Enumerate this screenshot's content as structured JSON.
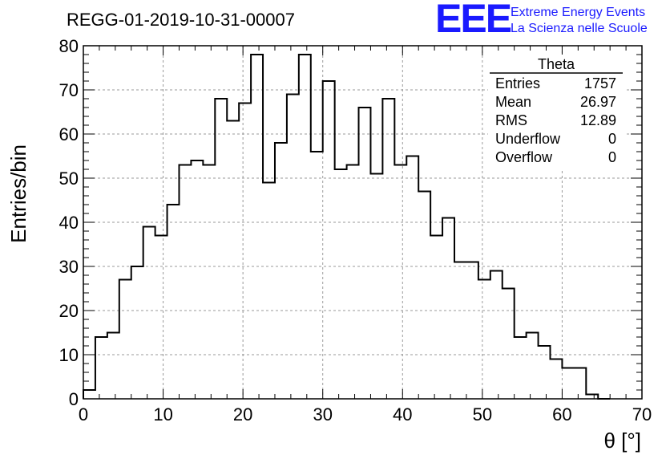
{
  "chart_data": {
    "type": "bar",
    "histogram": true,
    "title": "REGG-01-2019-10-31-00007",
    "xlabel": "θ [°]",
    "ylabel": "Entries/bin",
    "xlim": [
      0,
      70
    ],
    "ylim": [
      0,
      80
    ],
    "grid": true,
    "bin_width": 1.5,
    "bins_start": 0,
    "values": [
      2,
      14,
      15,
      27,
      30,
      39,
      37,
      44,
      53,
      54,
      53,
      68,
      63,
      67,
      78,
      49,
      58,
      69,
      78,
      56,
      72,
      52,
      53,
      66,
      51,
      68,
      53,
      55,
      47,
      37,
      41,
      31,
      31,
      27,
      29,
      25,
      14,
      15,
      12,
      9,
      7,
      7,
      1,
      0
    ],
    "x_ticks": [
      "0",
      "10",
      "20",
      "30",
      "40",
      "50",
      "60",
      "70"
    ],
    "y_ticks": [
      "0",
      "10",
      "20",
      "30",
      "40",
      "50",
      "60",
      "70",
      "80"
    ],
    "stats_box": {
      "name": "Theta",
      "placement": "top-right",
      "rows": [
        {
          "label": "Entries",
          "value": "1757"
        },
        {
          "label": "Mean",
          "value": "26.97"
        },
        {
          "label": "RMS",
          "value": "12.89"
        },
        {
          "label": "Underflow",
          "value": "0"
        },
        {
          "label": "Overflow",
          "value": "0"
        }
      ]
    }
  },
  "logo": {
    "mark": "EEE",
    "line1": "Extreme Energy Events",
    "line2": "La Scienza nelle Scuole",
    "color": "#1a1aff"
  }
}
